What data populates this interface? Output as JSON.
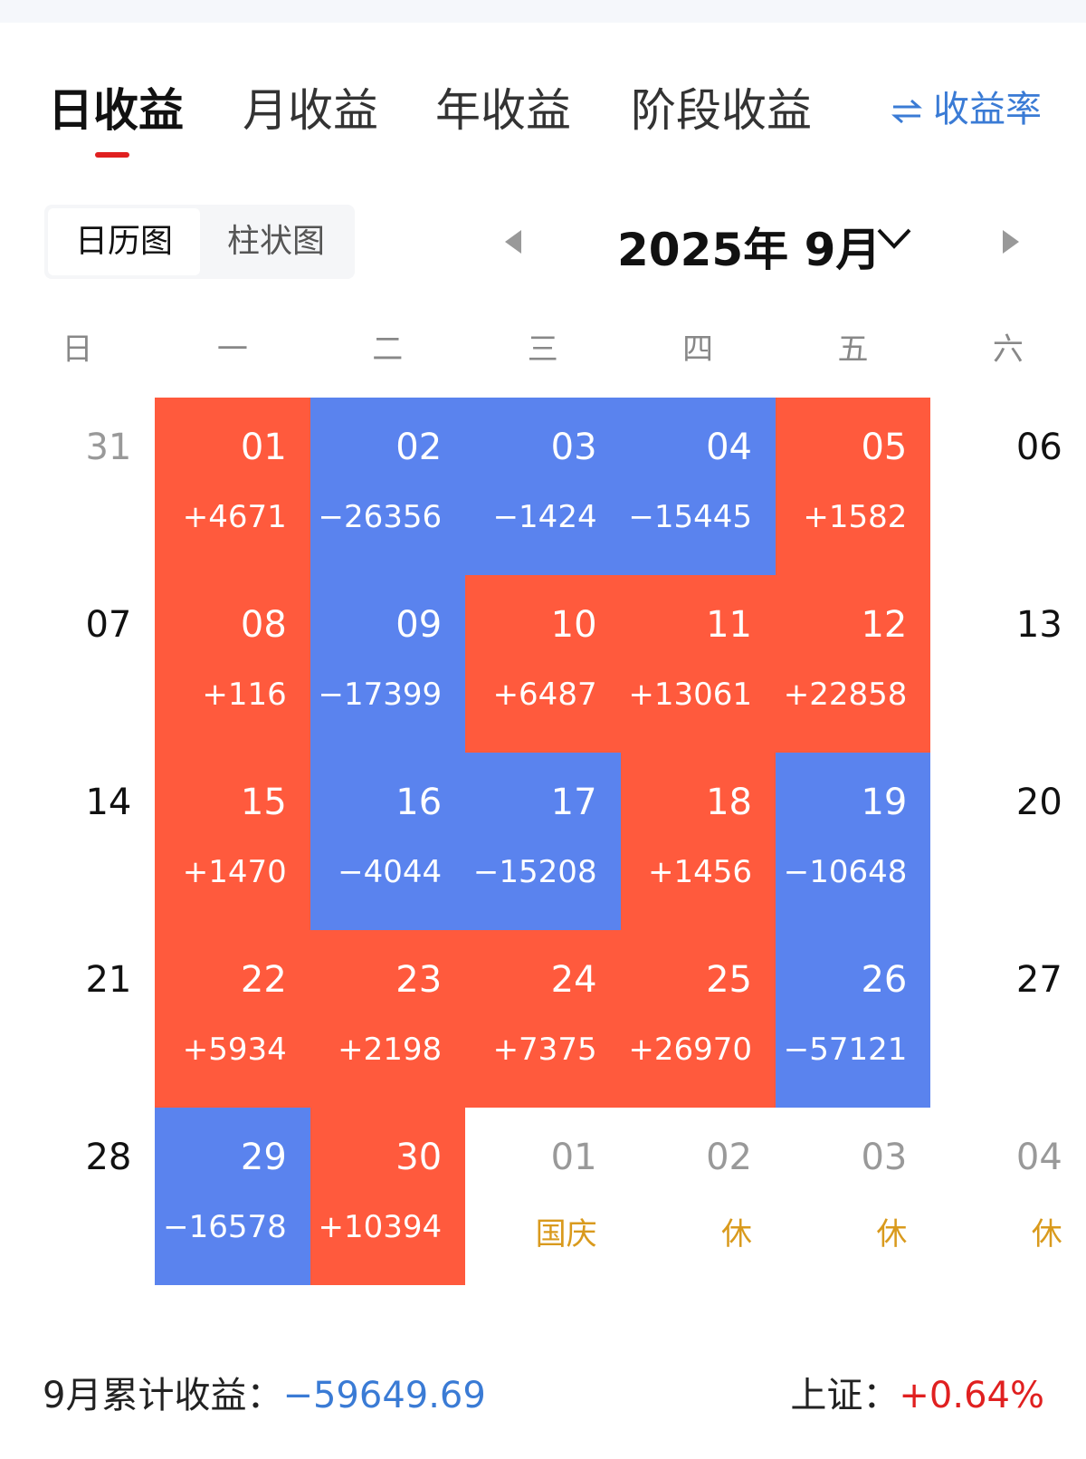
{
  "tabs": [
    "日收益",
    "月收益",
    "年收益",
    "阶段收益"
  ],
  "rate_toggle": "收益率",
  "view_toggle": [
    "日历图",
    "柱状图"
  ],
  "month_title": "2025年 9月",
  "weekdays": [
    "日",
    "一",
    "二",
    "三",
    "四",
    "五",
    "六"
  ],
  "calendar": {
    "leading_days": [
      {
        "day": "31"
      }
    ],
    "days": [
      {
        "day": "01",
        "value": "+4671"
      },
      {
        "day": "02",
        "value": "−26356"
      },
      {
        "day": "03",
        "value": "−1424"
      },
      {
        "day": "04",
        "value": "−15445"
      },
      {
        "day": "05",
        "value": "+1582"
      },
      {
        "day": "06"
      },
      {
        "day": "07"
      },
      {
        "day": "08",
        "value": "+116"
      },
      {
        "day": "09",
        "value": "−17399"
      },
      {
        "day": "10",
        "value": "+6487"
      },
      {
        "day": "11",
        "value": "+13061"
      },
      {
        "day": "12",
        "value": "+22858"
      },
      {
        "day": "13"
      },
      {
        "day": "14"
      },
      {
        "day": "15",
        "value": "+1470"
      },
      {
        "day": "16",
        "value": "−4044"
      },
      {
        "day": "17",
        "value": "−15208"
      },
      {
        "day": "18",
        "value": "+1456"
      },
      {
        "day": "19",
        "value": "−10648"
      },
      {
        "day": "20"
      },
      {
        "day": "21"
      },
      {
        "day": "22",
        "value": "+5934"
      },
      {
        "day": "23",
        "value": "+2198"
      },
      {
        "day": "24",
        "value": "+7375"
      },
      {
        "day": "25",
        "value": "+26970"
      },
      {
        "day": "26",
        "value": "−57121"
      },
      {
        "day": "27"
      },
      {
        "day": "28"
      },
      {
        "day": "29",
        "value": "−16578"
      },
      {
        "day": "30",
        "value": "+10394"
      }
    ],
    "trailing_days": [
      {
        "day": "01",
        "note": "国庆"
      },
      {
        "day": "02",
        "note": "休"
      },
      {
        "day": "03",
        "note": "休"
      },
      {
        "day": "04",
        "note": "休"
      }
    ]
  },
  "footer": {
    "label": "9月累计收益：",
    "total": "−59649.69",
    "index_label": "上证：",
    "index_value": "+0.64%"
  }
}
